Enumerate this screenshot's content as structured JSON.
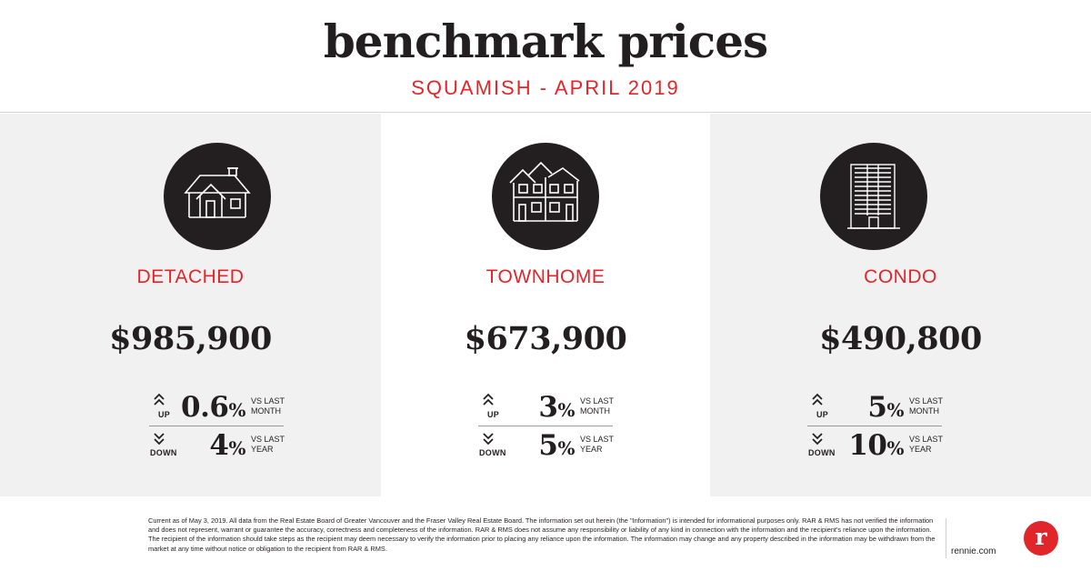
{
  "header": {
    "title": "benchmark prices",
    "subtitle": "SQUAMISH - APRIL 2019"
  },
  "colors": {
    "accent": "#e0262b",
    "dark": "#231f20",
    "panel_gray": "#f1f1f1"
  },
  "categories": [
    {
      "icon": "detached-house-icon",
      "name": "DETACHED",
      "price": "$985,900",
      "stats": [
        {
          "direction": "UP",
          "arrow": "double-chevron-up-icon",
          "value": "0.6",
          "symbol": "%",
          "vs_line1": "VS LAST",
          "vs_line2": "MONTH"
        },
        {
          "direction": "DOWN",
          "arrow": "double-chevron-down-icon",
          "value": "4",
          "symbol": "%",
          "vs_line1": "VS LAST",
          "vs_line2": "YEAR"
        }
      ]
    },
    {
      "icon": "townhome-icon",
      "name": "TOWNHOME",
      "price": "$673,900",
      "stats": [
        {
          "direction": "UP",
          "arrow": "double-chevron-up-icon",
          "value": "3",
          "symbol": "%",
          "vs_line1": "VS LAST",
          "vs_line2": "MONTH"
        },
        {
          "direction": "DOWN",
          "arrow": "double-chevron-down-icon",
          "value": "5",
          "symbol": "%",
          "vs_line1": "VS LAST",
          "vs_line2": "YEAR"
        }
      ]
    },
    {
      "icon": "condo-building-icon",
      "name": "CONDO",
      "price": "$490,800",
      "stats": [
        {
          "direction": "UP",
          "arrow": "double-chevron-up-icon",
          "value": "5",
          "symbol": "%",
          "vs_line1": "VS LAST",
          "vs_line2": "MONTH"
        },
        {
          "direction": "DOWN",
          "arrow": "double-chevron-down-icon",
          "value": "10",
          "symbol": "%",
          "vs_line1": "VS LAST",
          "vs_line2": "YEAR"
        }
      ]
    }
  ],
  "footer": {
    "disclaimer": "Current as of May 3, 2019. All data from the Real Estate Board of Greater Vancouver and the Fraser Valley Real Estate Board. The information set out herein (the \"Information\") is intended for informational purposes only. RAR & RMS has not verified the information and does not represent, warrant or guarantee the accuracy, correctness and completeness of the information. RAR & RMS does not assume any responsibility or liability of any kind in connection with the information and the recipient's reliance upon the information. The recipient of the information should take steps as the recipient may deem necessary to verify the information prior to placing any reliance upon the information. The information may change and any property described in the information may be withdrawn from the market at any time without notice or obligation to the recipient from RAR & RMS.",
    "site": "rennie.com",
    "logo_letter": "r",
    "logo_icon": "rennie-logo-icon"
  }
}
